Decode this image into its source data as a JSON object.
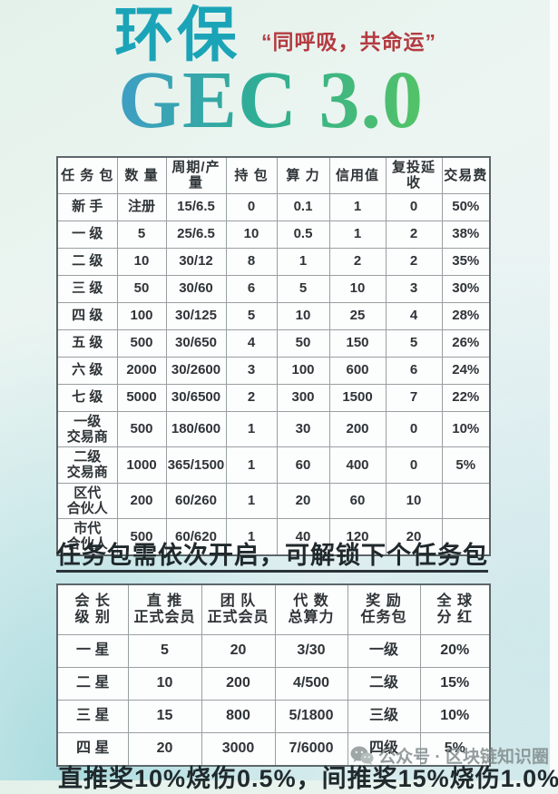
{
  "header": {
    "title_cn": "环保",
    "subtitle": "“同呼吸，共命运”",
    "title_en": "GEC 3.0",
    "colors": {
      "title_cn": "#1ba4b7",
      "subtitle": "#b43a40",
      "title_en_gradient_start": "#3f9ec6",
      "title_en_gradient_end": "#55c366"
    }
  },
  "table1": {
    "headers": [
      "任 务 包",
      "数 量",
      "周期/产量",
      "持 包",
      "算 力",
      "信用值",
      "复投延收",
      "交易费"
    ],
    "rows": [
      [
        "新 手",
        "注册",
        "15/6.5",
        "0",
        "0.1",
        "1",
        "0",
        "50%"
      ],
      [
        "一 级",
        "5",
        "25/6.5",
        "10",
        "0.5",
        "1",
        "2",
        "38%"
      ],
      [
        "二 级",
        "10",
        "30/12",
        "8",
        "1",
        "2",
        "2",
        "35%"
      ],
      [
        "三 级",
        "50",
        "30/60",
        "6",
        "5",
        "10",
        "3",
        "30%"
      ],
      [
        "四 级",
        "100",
        "30/125",
        "5",
        "10",
        "25",
        "4",
        "28%"
      ],
      [
        "五 级",
        "500",
        "30/650",
        "4",
        "50",
        "150",
        "5",
        "26%"
      ],
      [
        "六 级",
        "2000",
        "30/2600",
        "3",
        "100",
        "600",
        "6",
        "24%"
      ],
      [
        "七 级",
        "5000",
        "30/6500",
        "2",
        "300",
        "1500",
        "7",
        "22%"
      ],
      [
        "一级\n交易商",
        "500",
        "180/600",
        "1",
        "30",
        "200",
        "0",
        "10%"
      ],
      [
        "二级\n交易商",
        "1000",
        "365/1500",
        "1",
        "60",
        "400",
        "0",
        "5%"
      ],
      [
        "区代\n合伙人",
        "200",
        "60/260",
        "1",
        "20",
        "60",
        "10",
        ""
      ],
      [
        "市代\n合伙人",
        "500",
        "60/620",
        "1",
        "40",
        "120",
        "20",
        ""
      ]
    ]
  },
  "note": "任务包需依次开启，可解锁下个任务包",
  "table2": {
    "headers": [
      "会 长\n级 别",
      "直 推\n正式会员",
      "团 队\n正式会员",
      "代 数\n总算力",
      "奖 励\n任务包",
      "全 球\n分 红"
    ],
    "rows": [
      [
        "一 星",
        "5",
        "20",
        "3/30",
        "一级",
        "20%"
      ],
      [
        "二 星",
        "10",
        "200",
        "4/500",
        "二级",
        "15%"
      ],
      [
        "三 星",
        "15",
        "800",
        "5/1800",
        "三级",
        "10%"
      ],
      [
        "四 星",
        "20",
        "3000",
        "7/6000",
        "四级",
        "5%"
      ]
    ]
  },
  "footer": "直推奖10%烧伤0.5%，间推奖15%烧伤1.0%",
  "watermark": {
    "icon": "wechat-icon",
    "text": "公众号 · 区块链知识圈"
  }
}
